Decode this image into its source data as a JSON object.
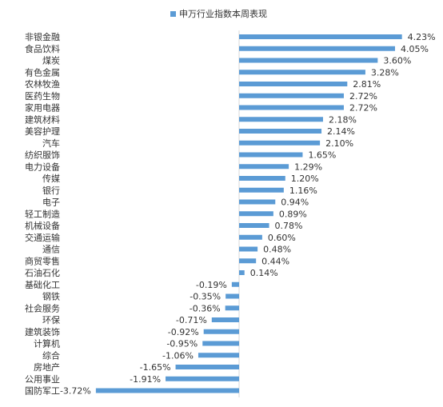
{
  "chart_data": {
    "type": "bar",
    "orientation": "horizontal",
    "legend": {
      "position": "top",
      "label": "申万行业指数本周表现"
    },
    "colors": {
      "bar": "#5b9bd5",
      "axis": "#d9d9d9",
      "text": "#333333"
    },
    "value_format": "percent-2dp",
    "xlim": [
      -3.72,
      4.23
    ],
    "grid": false,
    "categories": [
      "非银金融",
      "食品饮料",
      "煤炭",
      "有色金属",
      "农林牧渔",
      "医药生物",
      "家用电器",
      "建筑材料",
      "美容护理",
      "汽车",
      "纺织服饰",
      "电力设备",
      "传媒",
      "银行",
      "电子",
      "轻工制造",
      "机械设备",
      "交通运输",
      "通信",
      "商贸零售",
      "石油石化",
      "基础化工",
      "钢铁",
      "社会服务",
      "环保",
      "建筑装饰",
      "计算机",
      "综合",
      "房地产",
      "公用事业",
      "国防军工"
    ],
    "series": [
      {
        "name": "申万行业指数本周表现",
        "values": [
          4.23,
          4.05,
          3.6,
          3.28,
          2.81,
          2.72,
          2.72,
          2.18,
          2.14,
          2.1,
          1.65,
          1.29,
          1.2,
          1.16,
          0.94,
          0.89,
          0.78,
          0.6,
          0.48,
          0.44,
          0.14,
          -0.19,
          -0.35,
          -0.36,
          -0.71,
          -0.92,
          -0.95,
          -1.06,
          -1.65,
          -1.91,
          -3.72
        ],
        "value_labels": [
          "4.23%",
          "4.05%",
          "3.60%",
          "3.28%",
          "2.81%",
          "2.72%",
          "2.72%",
          "2.18%",
          "2.14%",
          "2.10%",
          "1.65%",
          "1.29%",
          "1.20%",
          "1.16%",
          "0.94%",
          "0.89%",
          "0.78%",
          "0.60%",
          "0.48%",
          "0.44%",
          "0.14%",
          "-0.19%",
          "-0.35%",
          "-0.36%",
          "-0.71%",
          "-0.92%",
          "-0.95%",
          "-1.06%",
          "-1.65%",
          "-1.91%",
          "-3.72%"
        ]
      }
    ]
  }
}
